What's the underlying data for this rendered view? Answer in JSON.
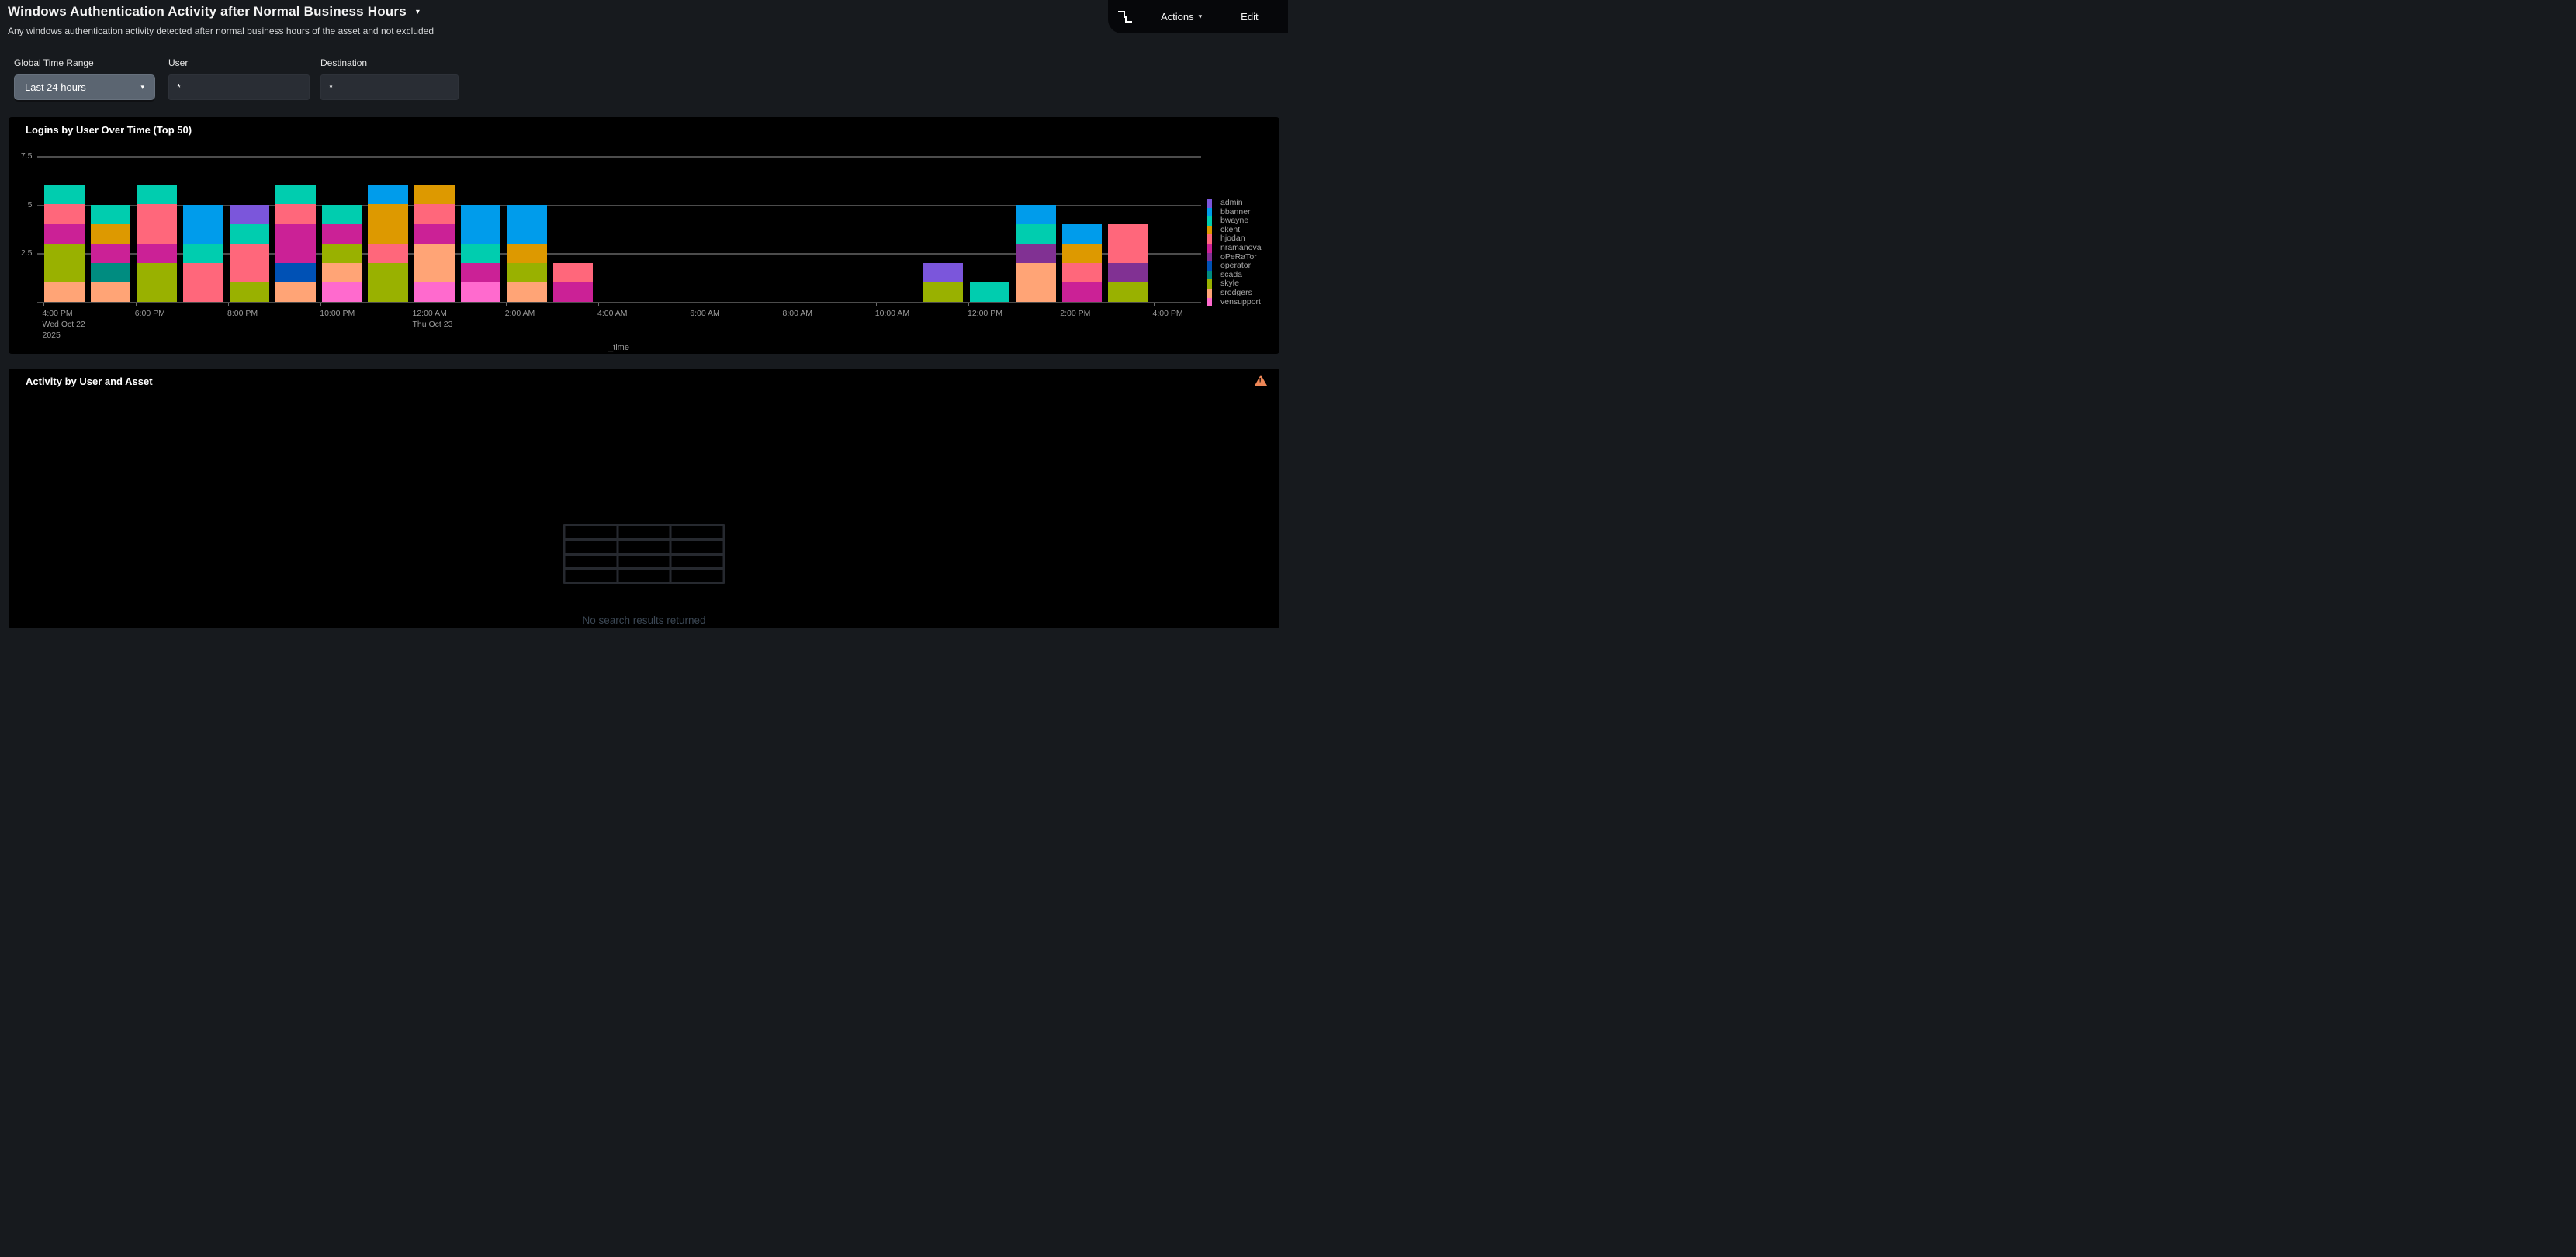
{
  "header": {
    "title": "Windows Authentication Activity after Normal Business Hours",
    "title_caret": "▾",
    "subtitle": "Any windows authentication activity detected after normal business hours of the asset and not excluded",
    "toolbar": {
      "actions_label": "Actions",
      "actions_caret": "▾",
      "edit_label": "Edit"
    }
  },
  "filters": {
    "time_range": {
      "label": "Global Time Range",
      "value": "Last 24 hours",
      "caret": "▾"
    },
    "user": {
      "label": "User",
      "value": "*"
    },
    "destination": {
      "label": "Destination",
      "value": "*"
    }
  },
  "logins_panel": {
    "title": "Logins by User Over Time (Top 50)"
  },
  "activity_panel": {
    "title": "Activity by User and Asset",
    "empty_message": "No search results returned"
  },
  "chart_data": {
    "type": "bar",
    "stacked": true,
    "title": "Logins by User Over Time (Top 50)",
    "xlabel": "_time",
    "ylabel": "",
    "ylim": [
      0,
      7.5
    ],
    "grid": true,
    "legend_position": "right",
    "y_axis": [
      {
        "label": "7.5",
        "value": 7.5
      },
      {
        "label": "5",
        "value": 5
      },
      {
        "label": "2.5",
        "value": 2.5
      }
    ],
    "y_gridlines": [
      7.5,
      5,
      2.5,
      0
    ],
    "x_ticks": [
      {
        "label": "4:00 PM",
        "sub": [
          "Wed Oct 22",
          "2025"
        ]
      },
      {
        "label": "6:00 PM",
        "sub": []
      },
      {
        "label": "8:00 PM",
        "sub": []
      },
      {
        "label": "10:00 PM",
        "sub": []
      },
      {
        "label": "12:00 AM",
        "sub": [
          "Thu Oct 23"
        ]
      },
      {
        "label": "2:00 AM",
        "sub": []
      },
      {
        "label": "4:00 AM",
        "sub": []
      },
      {
        "label": "6:00 AM",
        "sub": []
      },
      {
        "label": "8:00 AM",
        "sub": []
      },
      {
        "label": "10:00 AM",
        "sub": []
      },
      {
        "label": "12:00 PM",
        "sub": []
      },
      {
        "label": "2:00 PM",
        "sub": []
      },
      {
        "label": "4:00 PM",
        "sub": []
      }
    ],
    "users": [
      {
        "name": "admin",
        "color": "#7B56DB"
      },
      {
        "name": "bbanner",
        "color": "#009CEB"
      },
      {
        "name": "bwayne",
        "color": "#00CDAF"
      },
      {
        "name": "ckent",
        "color": "#DD9900"
      },
      {
        "name": "hjodan",
        "color": "#FF677B"
      },
      {
        "name": "nramanova",
        "color": "#CB2196"
      },
      {
        "name": "oPeRaTor",
        "color": "#813193"
      },
      {
        "name": "operator",
        "color": "#0051B5"
      },
      {
        "name": "scada",
        "color": "#008C80"
      },
      {
        "name": "skyle",
        "color": "#99B100"
      },
      {
        "name": "srodgers",
        "color": "#FFA476"
      },
      {
        "name": "vensupport",
        "color": "#FF6ACE"
      }
    ],
    "bars": [
      {
        "slot": 0,
        "time": "4:00 PM",
        "stack": [
          [
            "srodgers",
            1
          ],
          [
            "skyle",
            2
          ],
          [
            "nramanova",
            1
          ],
          [
            "hjodan",
            1
          ],
          [
            "bwayne",
            1
          ]
        ]
      },
      {
        "slot": 1,
        "time": "5:00 PM",
        "stack": [
          [
            "srodgers",
            1
          ],
          [
            "scada",
            1
          ],
          [
            "nramanova",
            1
          ],
          [
            "ckent",
            1
          ],
          [
            "bwayne",
            1
          ]
        ]
      },
      {
        "slot": 2,
        "time": "6:00 PM",
        "stack": [
          [
            "skyle",
            2
          ],
          [
            "nramanova",
            1
          ],
          [
            "hjodan",
            2
          ],
          [
            "bwayne",
            1
          ]
        ]
      },
      {
        "slot": 3,
        "time": "7:00 PM",
        "stack": [
          [
            "hjodan",
            2
          ],
          [
            "bwayne",
            1
          ],
          [
            "bbanner",
            2
          ]
        ]
      },
      {
        "slot": 4,
        "time": "8:00 PM",
        "stack": [
          [
            "skyle",
            1
          ],
          [
            "hjodan",
            2
          ],
          [
            "bwayne",
            1
          ],
          [
            "admin",
            1
          ]
        ]
      },
      {
        "slot": 5,
        "time": "9:00 PM",
        "stack": [
          [
            "srodgers",
            1
          ],
          [
            "operator",
            1
          ],
          [
            "nramanova",
            2
          ],
          [
            "hjodan",
            1
          ],
          [
            "bwayne",
            1
          ]
        ]
      },
      {
        "slot": 6,
        "time": "10:00 PM",
        "stack": [
          [
            "vensupport",
            1
          ],
          [
            "srodgers",
            1
          ],
          [
            "skyle",
            1
          ],
          [
            "nramanova",
            1
          ],
          [
            "bwayne",
            1
          ]
        ]
      },
      {
        "slot": 7,
        "time": "11:00 PM",
        "stack": [
          [
            "skyle",
            2
          ],
          [
            "hjodan",
            1
          ],
          [
            "ckent",
            2
          ],
          [
            "bbanner",
            1
          ]
        ]
      },
      {
        "slot": 8,
        "time": "12:00 AM",
        "stack": [
          [
            "vensupport",
            1
          ],
          [
            "srodgers",
            2
          ],
          [
            "nramanova",
            1
          ],
          [
            "hjodan",
            1
          ],
          [
            "ckent",
            1
          ]
        ]
      },
      {
        "slot": 9,
        "time": "1:00 AM",
        "stack": [
          [
            "vensupport",
            1
          ],
          [
            "nramanova",
            1
          ],
          [
            "bwayne",
            1
          ],
          [
            "bbanner",
            2
          ]
        ]
      },
      {
        "slot": 10,
        "time": "2:00 AM",
        "stack": [
          [
            "srodgers",
            1
          ],
          [
            "skyle",
            1
          ],
          [
            "ckent",
            1
          ],
          [
            "bbanner",
            2
          ]
        ]
      },
      {
        "slot": 11,
        "time": "3:00 AM",
        "stack": [
          [
            "nramanova",
            1
          ],
          [
            "hjodan",
            1
          ]
        ]
      },
      {
        "slot": 19,
        "time": "11:00 AM",
        "stack": [
          [
            "skyle",
            1
          ],
          [
            "admin",
            1
          ]
        ]
      },
      {
        "slot": 20,
        "time": "12:00 PM",
        "stack": [
          [
            "bwayne",
            1
          ]
        ]
      },
      {
        "slot": 21,
        "time": "1:00 PM",
        "stack": [
          [
            "srodgers",
            2
          ],
          [
            "oPeRaTor",
            1
          ],
          [
            "bwayne",
            1
          ],
          [
            "bbanner",
            1
          ]
        ]
      },
      {
        "slot": 22,
        "time": "2:00 PM",
        "stack": [
          [
            "nramanova",
            1
          ],
          [
            "hjodan",
            1
          ],
          [
            "ckent",
            1
          ],
          [
            "bbanner",
            1
          ]
        ]
      },
      {
        "slot": 23,
        "time": "3:00 PM",
        "stack": [
          [
            "skyle",
            1
          ],
          [
            "oPeRaTor",
            1
          ],
          [
            "hjodan",
            2
          ]
        ]
      }
    ]
  }
}
